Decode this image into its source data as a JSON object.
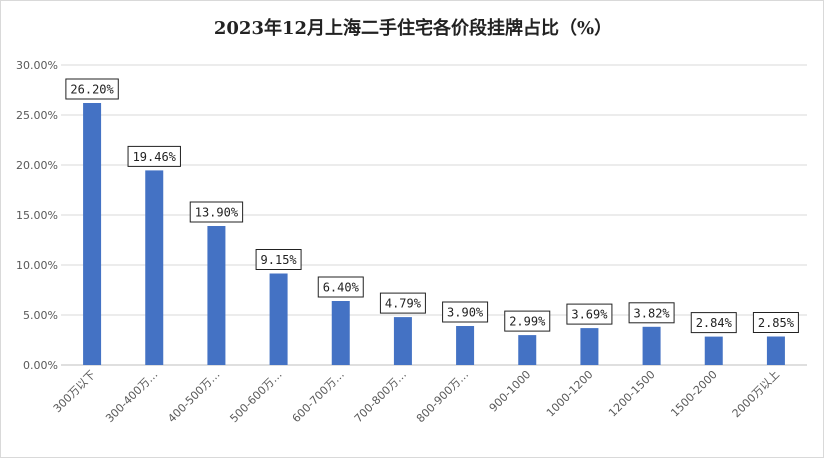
{
  "chart_data": {
    "type": "bar",
    "title": "2023年12月上海二手住宅各价段挂牌占比（%）",
    "xlabel": "",
    "ylabel": "",
    "ylim": [
      0,
      30
    ],
    "yticks": [
      "0.00%",
      "5.00%",
      "10.00%",
      "15.00%",
      "20.00%",
      "25.00%",
      "30.00%"
    ],
    "ytick_values": [
      0,
      5,
      10,
      15,
      20,
      25,
      30
    ],
    "grid": true,
    "legend": "none",
    "bar_color": "#4472c4",
    "categories": [
      "300万以下",
      "300-400万…",
      "400-500万…",
      "500-600万…",
      "600-700万…",
      "700-800万…",
      "800-900万…",
      "900-1000",
      "1000-1200",
      "1200-1500",
      "1500-2000",
      "2000万以上"
    ],
    "values": [
      26.2,
      19.46,
      13.9,
      9.15,
      6.4,
      4.79,
      3.9,
      2.99,
      3.69,
      3.82,
      2.84,
      2.85
    ],
    "data_labels": [
      "26.20%",
      "19.46%",
      "13.90%",
      "9.15%",
      "6.40%",
      "4.79%",
      "3.90%",
      "2.99%",
      "3.69%",
      "3.82%",
      "2.84%",
      "2.85%"
    ]
  }
}
